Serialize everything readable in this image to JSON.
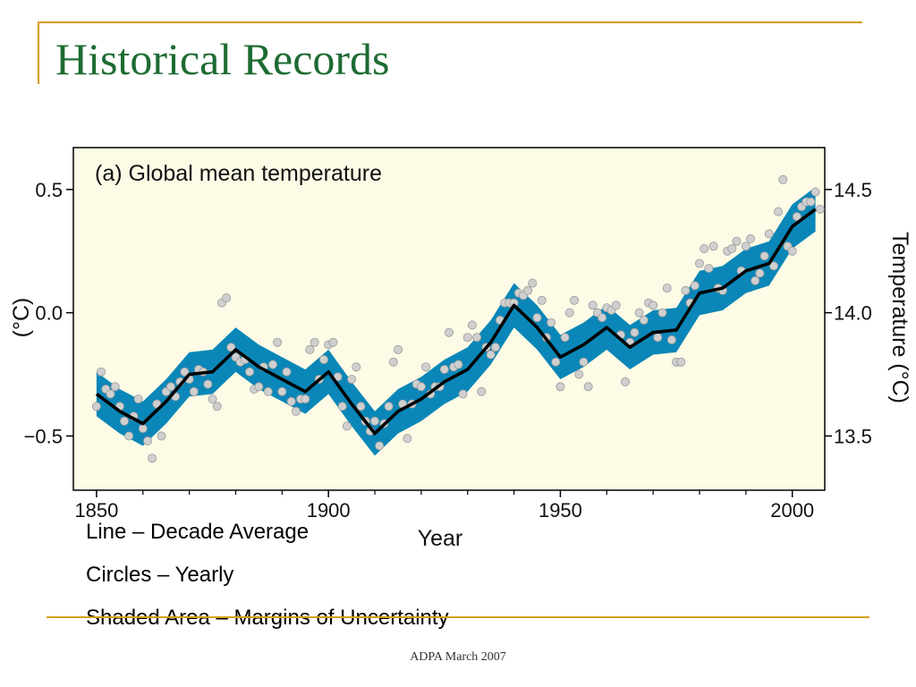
{
  "slide": {
    "title": "Historical Records",
    "footer": "ADPA March 2007",
    "captions": [
      "Line – Decade Average",
      "Circles – Yearly",
      "Shaded Area – Margins of Uncertainty"
    ]
  },
  "colors": {
    "title": "#1d6b32",
    "rule": "#d4a017",
    "plot_background": "#fdfbe6",
    "uncertainty_band": "#0a87b8",
    "decade_line": "#000000",
    "yearly_circles": "#cfcfcf"
  },
  "chart_data": {
    "type": "line",
    "title": "(a) Global mean temperature",
    "xlabel": "Year",
    "ylabel": "(°C)",
    "ylabel_right": "Temperature (°C)",
    "xlim": [
      1845,
      2007
    ],
    "ylim": [
      -0.72,
      0.67
    ],
    "x_ticks": [
      1850,
      1900,
      1950,
      2000
    ],
    "y_ticks": [
      -0.5,
      0.0,
      0.5
    ],
    "y_ticks_right": [
      13.5,
      14.0,
      14.5
    ],
    "right_axis_offset": 14.0,
    "grid": false,
    "series": [
      {
        "type": "line",
        "x": [
          1850,
          1855,
          1860,
          1865,
          1870,
          1875,
          1880,
          1885,
          1890,
          1895,
          1900,
          1905,
          1910,
          1915,
          1920,
          1925,
          1930,
          1935,
          1940,
          1945,
          1950,
          1955,
          1960,
          1965,
          1970,
          1975,
          1980,
          1985,
          1990,
          1995,
          2000,
          2005
        ],
        "values": [
          -0.33,
          -0.4,
          -0.45,
          -0.36,
          -0.25,
          -0.24,
          -0.15,
          -0.22,
          -0.27,
          -0.32,
          -0.24,
          -0.37,
          -0.49,
          -0.4,
          -0.35,
          -0.28,
          -0.23,
          -0.12,
          0.03,
          -0.06,
          -0.18,
          -0.13,
          -0.06,
          -0.14,
          -0.08,
          -0.07,
          0.08,
          0.1,
          0.17,
          0.2,
          0.35,
          0.42
        ],
        "band": 0.09
      },
      {
        "type": "scatter",
        "x": [
          1850,
          1851,
          1852,
          1853,
          1854,
          1855,
          1856,
          1857,
          1858,
          1859,
          1860,
          1861,
          1862,
          1863,
          1864,
          1865,
          1866,
          1867,
          1868,
          1869,
          1870,
          1871,
          1872,
          1873,
          1874,
          1875,
          1876,
          1877,
          1878,
          1879,
          1880,
          1881,
          1882,
          1883,
          1884,
          1885,
          1886,
          1887,
          1888,
          1889,
          1890,
          1891,
          1892,
          1893,
          1894,
          1895,
          1896,
          1897,
          1898,
          1899,
          1900,
          1901,
          1902,
          1903,
          1904,
          1905,
          1906,
          1907,
          1908,
          1909,
          1910,
          1911,
          1912,
          1913,
          1914,
          1915,
          1916,
          1917,
          1918,
          1919,
          1920,
          1921,
          1922,
          1923,
          1924,
          1925,
          1926,
          1927,
          1928,
          1929,
          1930,
          1931,
          1932,
          1933,
          1934,
          1935,
          1936,
          1937,
          1938,
          1939,
          1940,
          1941,
          1942,
          1943,
          1944,
          1945,
          1946,
          1947,
          1948,
          1949,
          1950,
          1951,
          1952,
          1953,
          1954,
          1955,
          1956,
          1957,
          1958,
          1959,
          1960,
          1961,
          1962,
          1963,
          1964,
          1965,
          1966,
          1967,
          1968,
          1969,
          1970,
          1971,
          1972,
          1973,
          1974,
          1975,
          1976,
          1977,
          1978,
          1979,
          1980,
          1981,
          1982,
          1983,
          1984,
          1985,
          1986,
          1987,
          1988,
          1989,
          1990,
          1991,
          1992,
          1993,
          1994,
          1995,
          1996,
          1997,
          1998,
          1999,
          2000,
          2001,
          2002,
          2003,
          2004,
          2005,
          2006
        ],
        "values": [
          -0.38,
          -0.24,
          -0.31,
          -0.33,
          -0.3,
          -0.38,
          -0.44,
          -0.5,
          -0.42,
          -0.35,
          -0.47,
          -0.52,
          -0.59,
          -0.37,
          -0.5,
          -0.32,
          -0.3,
          -0.34,
          -0.28,
          -0.24,
          -0.27,
          -0.32,
          -0.23,
          -0.24,
          -0.29,
          -0.35,
          -0.38,
          0.04,
          0.06,
          -0.14,
          -0.18,
          -0.2,
          -0.19,
          -0.24,
          -0.31,
          -0.3,
          -0.22,
          -0.32,
          -0.21,
          -0.12,
          -0.32,
          -0.24,
          -0.36,
          -0.4,
          -0.35,
          -0.35,
          -0.15,
          -0.12,
          -0.27,
          -0.19,
          -0.13,
          -0.12,
          -0.26,
          -0.38,
          -0.46,
          -0.27,
          -0.22,
          -0.38,
          -0.44,
          -0.48,
          -0.44,
          -0.54,
          -0.45,
          -0.38,
          -0.2,
          -0.15,
          -0.37,
          -0.51,
          -0.37,
          -0.29,
          -0.3,
          -0.22,
          -0.33,
          -0.3,
          -0.3,
          -0.23,
          -0.08,
          -0.22,
          -0.21,
          -0.33,
          -0.1,
          -0.05,
          -0.1,
          -0.32,
          -0.14,
          -0.17,
          -0.14,
          -0.03,
          0.04,
          0.04,
          0.04,
          0.08,
          0.07,
          0.09,
          0.12,
          -0.02,
          0.05,
          -0.1,
          -0.04,
          -0.2,
          -0.3,
          -0.1,
          0.0,
          0.05,
          -0.25,
          -0.2,
          -0.3,
          0.03,
          0.0,
          -0.02,
          0.02,
          0.01,
          0.03,
          -0.09,
          -0.28,
          -0.12,
          -0.08,
          0.0,
          -0.03,
          0.04,
          0.03,
          -0.1,
          0.0,
          0.1,
          -0.11,
          -0.2,
          -0.2,
          0.09,
          0.04,
          0.11,
          0.2,
          0.26,
          0.18,
          0.27,
          0.1,
          0.09,
          0.25,
          0.26,
          0.29,
          0.17,
          0.27,
          0.3,
          0.13,
          0.16,
          0.23,
          0.32,
          0.19,
          0.41,
          0.54,
          0.27,
          0.25,
          0.39,
          0.43,
          0.45,
          0.45,
          0.49,
          0.42
        ]
      }
    ]
  }
}
